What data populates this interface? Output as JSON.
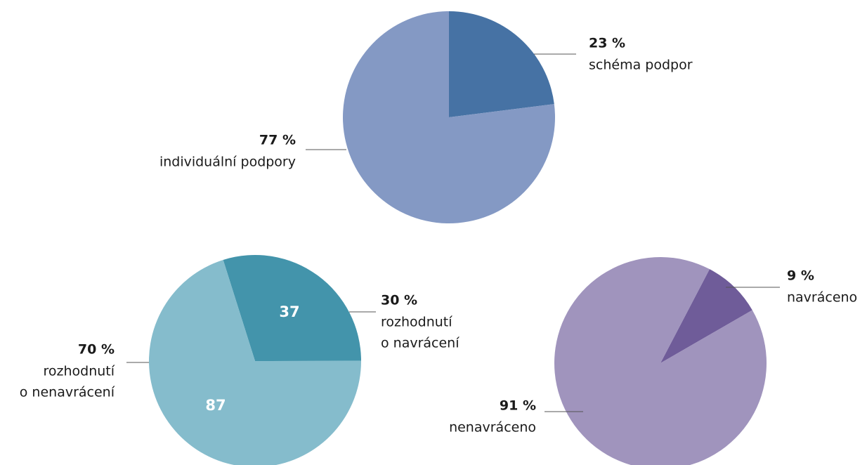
{
  "chart_data": [
    {
      "type": "pie",
      "categories": [
        [
          "schéma podpor"
        ],
        [
          "individuální podpory"
        ]
      ],
      "values": [
        23,
        77
      ],
      "value_labels": [
        "23 %",
        "77 %"
      ],
      "colors": [
        "#4672a4",
        "#8499c4"
      ]
    },
    {
      "type": "pie",
      "categories": [
        [
          "rozhodnutí",
          "o navrácení"
        ],
        [
          "rozhodnutí",
          "o nenavrácení"
        ]
      ],
      "values": [
        37,
        87
      ],
      "percent_labels": [
        "30 %",
        "70 %"
      ],
      "colors": [
        "#4394ab",
        "#85bccc"
      ]
    },
    {
      "type": "pie",
      "categories": [
        [
          "navráceno"
        ],
        [
          "nenavráceno"
        ]
      ],
      "values": [
        9,
        91
      ],
      "value_labels": [
        "9 %",
        "91 %"
      ],
      "colors": [
        "#6f5c99",
        "#a094bd"
      ]
    }
  ]
}
